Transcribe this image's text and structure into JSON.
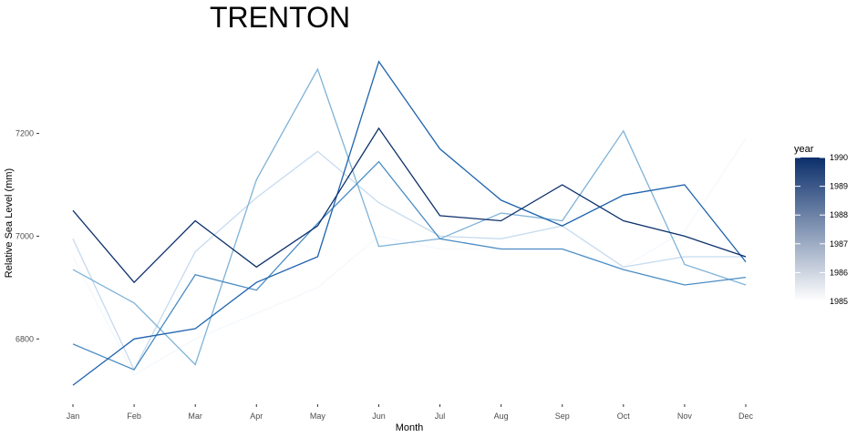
{
  "chart_data": {
    "type": "line",
    "title": "TRENTON",
    "xlabel": "Month",
    "ylabel": "Relative Sea Level (mm)",
    "categories": [
      "Jan",
      "Feb",
      "Mar",
      "Apr",
      "May",
      "Jun",
      "Jul",
      "Aug",
      "Sep",
      "Oct",
      "Nov",
      "Dec"
    ],
    "ylim": [
      6680,
      7380
    ],
    "yticks": [
      6800,
      7000,
      7200
    ],
    "grid": false,
    "legend": {
      "title": "year",
      "placement": "right",
      "ticks": [
        1990,
        1989,
        1988,
        1987,
        1986,
        1985
      ],
      "range": [
        1985,
        1990
      ],
      "color_low": "#ffffff",
      "color_high": "#0b2f6b"
    },
    "series": [
      {
        "year": 1985,
        "color": "#f4f8fc",
        "values": [
          6960,
          6730,
          6800,
          6850,
          6900,
          7000,
          6975,
          6975,
          6975,
          6940,
          7010,
          7190
        ]
      },
      {
        "year": 1986,
        "color": "#c6dbef",
        "values": [
          6995,
          6740,
          6970,
          7075,
          7165,
          7065,
          7000,
          6995,
          7020,
          6940,
          6960,
          6960
        ]
      },
      {
        "year": 1987,
        "color": "#7fb3d8",
        "values": [
          6935,
          6870,
          6750,
          7110,
          7325,
          6980,
          6995,
          7045,
          7030,
          7205,
          6945,
          6905
        ]
      },
      {
        "year": 1988,
        "color": "#4a8cc4",
        "values": [
          6790,
          6740,
          6925,
          6895,
          7025,
          7145,
          6995,
          6975,
          6975,
          6935,
          6905,
          6920
        ]
      },
      {
        "year": 1989,
        "color": "#1f63ad",
        "values": [
          6710,
          6800,
          6820,
          6910,
          6960,
          7340,
          7170,
          7070,
          7020,
          7080,
          7100,
          6950
        ]
      },
      {
        "year": 1990,
        "color": "#0b2f6b",
        "values": [
          7050,
          6910,
          7030,
          6940,
          7020,
          7210,
          7040,
          7030,
          7100,
          7030,
          7000,
          6960
        ]
      }
    ]
  }
}
